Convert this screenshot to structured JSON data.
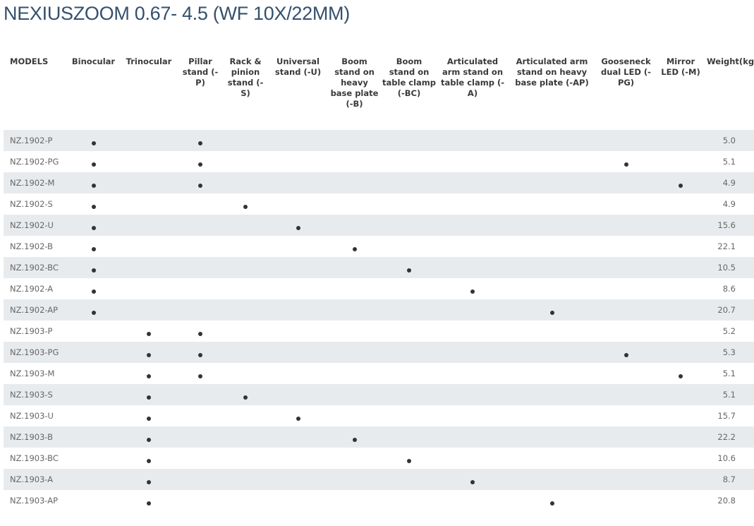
{
  "title": "NEXIUSZOOM 0.67- 4.5 (WF 10X/22MM)",
  "columns": [
    {
      "key": "model",
      "label": "MODELS"
    },
    {
      "key": "bin",
      "label": "Binocular"
    },
    {
      "key": "tri",
      "label": "Trinocular"
    },
    {
      "key": "P",
      "label": "Pillar stand (-P)"
    },
    {
      "key": "S",
      "label": "Rack & pinion stand (-S)"
    },
    {
      "key": "U",
      "label": "Universal stand (-U)"
    },
    {
      "key": "B",
      "label": "Boom stand on heavy base plate (-B)"
    },
    {
      "key": "BC",
      "label": "Boom stand on table clamp (-BC)"
    },
    {
      "key": "A",
      "label": "Articulated arm stand on table clamp (-A)"
    },
    {
      "key": "AP",
      "label": "Articulated arm stand on heavy base plate (-AP)"
    },
    {
      "key": "PG",
      "label": "Gooseneck dual LED (-PG)"
    },
    {
      "key": "M",
      "label": "Mirror LED (-M)"
    },
    {
      "key": "weight",
      "label": "Weight(kg)"
    }
  ],
  "rows": [
    {
      "model": "NZ.1902-P",
      "marks": [
        "bin",
        "P"
      ],
      "weight": "5.0"
    },
    {
      "model": "NZ.1902-PG",
      "marks": [
        "bin",
        "P",
        "PG"
      ],
      "weight": "5.1"
    },
    {
      "model": "NZ.1902-M",
      "marks": [
        "bin",
        "P",
        "M"
      ],
      "weight": "4.9"
    },
    {
      "model": "NZ.1902-S",
      "marks": [
        "bin",
        "S"
      ],
      "weight": "4.9"
    },
    {
      "model": "NZ.1902-U",
      "marks": [
        "bin",
        "U"
      ],
      "weight": "15.6"
    },
    {
      "model": "NZ.1902-B",
      "marks": [
        "bin",
        "B"
      ],
      "weight": "22.1"
    },
    {
      "model": "NZ.1902-BC",
      "marks": [
        "bin",
        "BC"
      ],
      "weight": "10.5"
    },
    {
      "model": "NZ.1902-A",
      "marks": [
        "bin",
        "A"
      ],
      "weight": "8.6"
    },
    {
      "model": "NZ.1902-AP",
      "marks": [
        "bin",
        "AP"
      ],
      "weight": "20.7"
    },
    {
      "model": "NZ.1903-P",
      "marks": [
        "tri",
        "P"
      ],
      "weight": "5.2"
    },
    {
      "model": "NZ.1903-PG",
      "marks": [
        "tri",
        "P",
        "PG"
      ],
      "weight": "5.3"
    },
    {
      "model": "NZ.1903-M",
      "marks": [
        "tri",
        "P",
        "M"
      ],
      "weight": "5.1"
    },
    {
      "model": "NZ.1903-S",
      "marks": [
        "tri",
        "S"
      ],
      "weight": "5.1"
    },
    {
      "model": "NZ.1903-U",
      "marks": [
        "tri",
        "U"
      ],
      "weight": "15.7"
    },
    {
      "model": "NZ.1903-B",
      "marks": [
        "tri",
        "B"
      ],
      "weight": "22.2"
    },
    {
      "model": "NZ.1903-BC",
      "marks": [
        "tri",
        "BC"
      ],
      "weight": "10.6"
    },
    {
      "model": "NZ.1903-A",
      "marks": [
        "tri",
        "A"
      ],
      "weight": "8.7"
    },
    {
      "model": "NZ.1903-AP",
      "marks": [
        "tri",
        "AP"
      ],
      "weight": "20.8"
    }
  ]
}
